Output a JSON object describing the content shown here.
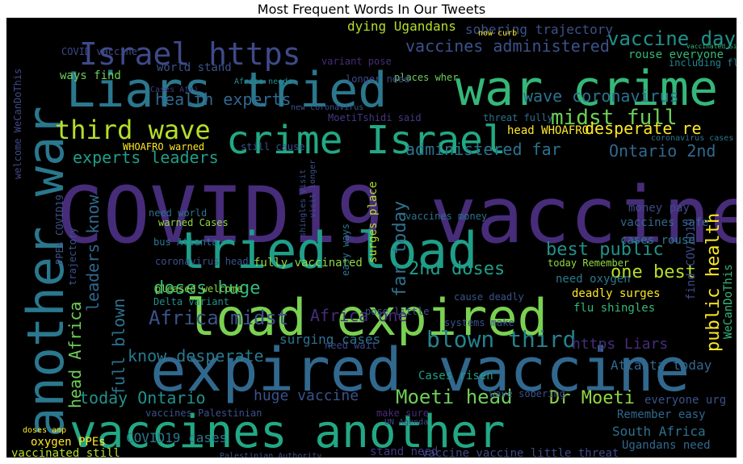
{
  "title": "Most Frequent Words In Our Tweets",
  "background_color": "#000000",
  "palette": "viridis",
  "words": [
    {
      "text": "COVID19 vaccine",
      "color": "#472c7a"
    },
    {
      "text": "expired vaccine",
      "color": "#31688e"
    },
    {
      "text": "load expired",
      "color": "#7ad151"
    },
    {
      "text": "Liars tried",
      "color": "#2a788e"
    },
    {
      "text": "vaccines another",
      "color": "#22a884"
    },
    {
      "text": "tried load",
      "color": "#1f9e89"
    },
    {
      "text": "war crime",
      "color": "#35b779"
    },
    {
      "text": "crime Israel",
      "color": "#22a884"
    },
    {
      "text": "another war",
      "color": "#2a788e"
    },
    {
      "text": "Israel https",
      "color": "#3e4a89"
    },
    {
      "text": "third wave",
      "color": "#b5de2b"
    },
    {
      "text": "Moeti head",
      "color": "#6ece58"
    },
    {
      "text": "Africa midst",
      "color": "#3b528b"
    },
    {
      "text": "blown third",
      "color": "#26828e"
    },
    {
      "text": "vaccines administered",
      "color": "#3b528b"
    },
    {
      "text": "vaccine days",
      "color": "#21918c"
    },
    {
      "text": "midst full",
      "color": "#6ece58"
    },
    {
      "text": "wave coronavirus",
      "color": "#2c728e"
    },
    {
      "text": "health experts",
      "color": "#31688e"
    },
    {
      "text": "experts leaders",
      "color": "#1f9e89"
    },
    {
      "text": "desperate re",
      "color": "#fde725"
    },
    {
      "text": "administered far",
      "color": "#2c728e"
    },
    {
      "text": "Ontario 2nd",
      "color": "#31688e"
    },
    {
      "text": "far today",
      "color": "#2c728e"
    },
    {
      "text": "best public",
      "color": "#21918c"
    },
    {
      "text": "one best",
      "color": "#b5de2b"
    },
    {
      "text": "public health",
      "color": "#fde725"
    },
    {
      "text": "2nd doses",
      "color": "#1f9e89"
    },
    {
      "text": "doses huge",
      "color": "#35b779"
    },
    {
      "text": "know desperate",
      "color": "#2a788e"
    },
    {
      "text": "leaders know",
      "color": "#31688e"
    },
    {
      "text": "full blown",
      "color": "#2c728e"
    },
    {
      "text": "head Africa",
      "color": "#6ece58"
    },
    {
      "text": "today Ontario",
      "color": "#21918c"
    },
    {
      "text": "huge vaccine",
      "color": "#3b528b"
    },
    {
      "text": "Dr Moeti",
      "color": "#90d743"
    },
    {
      "text": "https Liars",
      "color": "#472c7a"
    },
    {
      "text": "South Africa",
      "color": "#2c728e"
    },
    {
      "text": "Atlanta today",
      "color": "#31688e"
    },
    {
      "text": "fully vaccinated",
      "color": "#90d743"
    },
    {
      "text": "surging cases",
      "color": "#2c728e"
    },
    {
      "text": "Africa one",
      "color": "#472c7a"
    },
    {
      "text": "Cases risen",
      "color": "#1f9e89"
    },
    {
      "text": "COVID19 cases",
      "color": "#2a788e"
    },
    {
      "text": "oxygen PPEs",
      "color": "#fde725"
    },
    {
      "text": "vaccinated still",
      "color": "#b5de2b"
    },
    {
      "text": "stand need",
      "color": "#443983"
    },
    {
      "text": "vaccine vaccine little threat",
      "color": "#3e4a89"
    },
    {
      "text": "Ugandans need",
      "color": "#31688e"
    },
    {
      "text": "Remember easy",
      "color": "#31688e"
    },
    {
      "text": "everyone urg",
      "color": "#3b528b"
    },
    {
      "text": "find COVID19",
      "color": "#3e4a89"
    },
    {
      "text": "WeCanDoThis",
      "color": "#35b779"
    },
    {
      "text": "need oxygen",
      "color": "#2a788e"
    },
    {
      "text": "flu shingles",
      "color": "#35b779"
    },
    {
      "text": "deadly surges",
      "color": "#fde725"
    },
    {
      "text": "today Remember",
      "color": "#90d743"
    },
    {
      "text": "cases rouse",
      "color": "#2a788e"
    },
    {
      "text": "vaccines safe",
      "color": "#31688e"
    },
    {
      "text": "money pay",
      "color": "#3e4a89"
    },
    {
      "text": "coronavirus head",
      "color": "#3b528b"
    },
    {
      "text": "pleased welcome",
      "color": "#90d743"
    },
    {
      "text": "Delta variant",
      "color": "#21918c"
    },
    {
      "text": "warned Cases",
      "color": "#90d743"
    },
    {
      "text": "bus Atlanta",
      "color": "#2a788e"
    },
    {
      "text": "need world",
      "color": "#2c728e"
    },
    {
      "text": "vaccines money",
      "color": "#2c728e"
    },
    {
      "text": "easy ways",
      "color": "#2a788e"
    },
    {
      "text": "surges place",
      "color": "#b5de2b"
    },
    {
      "text": "rouse everyone",
      "color": "#35b779"
    },
    {
      "text": "including flu",
      "color": "#26828e"
    },
    {
      "text": "sobering trajectory",
      "color": "#3b528b"
    },
    {
      "text": "dying Ugandans",
      "color": "#b5de2b"
    },
    {
      "text": "variant pose",
      "color": "#472c7a"
    },
    {
      "text": "places wher",
      "color": "#6ece58"
    },
    {
      "text": "ways find",
      "color": "#6ece58"
    },
    {
      "text": "world stand",
      "color": "#3b528b"
    },
    {
      "text": "longer need",
      "color": "#3e4a89"
    },
    {
      "text": "threat fully",
      "color": "#2c728e"
    },
    {
      "text": "head WHOAFRO",
      "color": "#fde725"
    },
    {
      "text": "WHOAFRO warned",
      "color": "#fde725"
    },
    {
      "text": "still cause",
      "color": "#3b528b"
    },
    {
      "text": "COVID vaccine",
      "color": "#3e4a89"
    },
    {
      "text": "visit longer",
      "color": "#3b528b"
    },
    {
      "text": "shingles visit",
      "color": "#3b528b"
    },
    {
      "text": "PPEs COVID19",
      "color": "#3b528b"
    },
    {
      "text": "coronavirus cases",
      "color": "#2a788e"
    },
    {
      "text": "welcome WeCanDoThis",
      "color": "#3e4a89"
    },
    {
      "text": "MoetiTshidi said",
      "color": "#443983"
    },
    {
      "text": "cause deadly",
      "color": "#3b528b"
    },
    {
      "text": "wave sobering",
      "color": "#3b528b"
    },
    {
      "text": "systems make",
      "color": "#3b528b"
    },
    {
      "text": "need wait",
      "color": "#3e4a89"
    },
    {
      "text": "trajectory",
      "color": "#3b528b"
    },
    {
      "text": "vaccines Palestinian",
      "color": "#3b528b"
    },
    {
      "text": "Palestinian Authority",
      "color": "#3b528b"
    },
    {
      "text": "make sure",
      "color": "#472c7a"
    },
    {
      "text": "UN Agenda",
      "color": "#3e4a89"
    },
    {
      "text": "Cases Afri",
      "color": "#443983"
    },
    {
      "text": "Africa needs",
      "color": "#21918c"
    },
    {
      "text": "new coronavirus",
      "color": "#3b528b"
    },
    {
      "text": "now curb",
      "color": "#fde725"
    },
    {
      "text": "doses amp",
      "color": "#fde725"
    },
    {
      "text": "pose little",
      "color": "#3b528b"
    },
    {
      "text": "vaccinated Sinovac",
      "color": "#35b779"
    }
  ]
}
